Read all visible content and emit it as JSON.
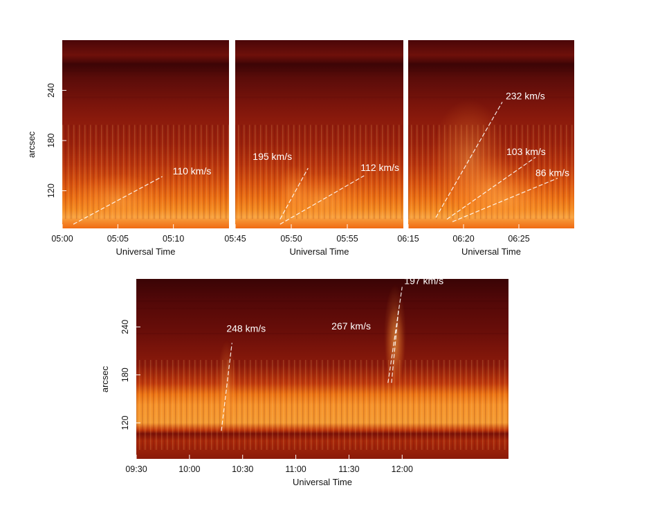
{
  "chart_data": [
    {
      "type": "heatmap",
      "panel": "top-left",
      "xlabel": "Universal Time",
      "ylabel": "arcsec",
      "x_ticks": [
        "05:00",
        "05:05",
        "05:10"
      ],
      "y_ticks": [
        "120",
        "180",
        "240"
      ],
      "xlim": [
        "05:00",
        "05:15"
      ],
      "ylim": [
        75,
        300
      ],
      "colormap": "red-orange-white (hot)",
      "annotations": [
        {
          "label": "110 km/s",
          "line": [
            [
              "05:01",
              80
            ],
            [
              "05:09",
              137
            ]
          ]
        }
      ]
    },
    {
      "type": "heatmap",
      "panel": "top-middle",
      "xlabel": "Universal Time",
      "ylabel": "",
      "x_ticks": [
        "05:45",
        "05:50",
        "05:55"
      ],
      "xlim": [
        "05:45",
        "06:00"
      ],
      "ylim": [
        75,
        300
      ],
      "colormap": "red-orange-white (hot)",
      "annotations": [
        {
          "label": "195 km/s",
          "line": [
            [
              "05:49",
              86
            ],
            [
              "05:51.5",
              147
            ]
          ]
        },
        {
          "label": "112 km/s",
          "line": [
            [
              "05:49",
              80
            ],
            [
              "05:56.5",
              138
            ]
          ]
        }
      ]
    },
    {
      "type": "heatmap",
      "panel": "top-right",
      "xlabel": "Universal Time",
      "ylabel": "",
      "x_ticks": [
        "06:15",
        "06:20",
        "06:25"
      ],
      "xlim": [
        "06:15",
        "06:30"
      ],
      "ylim": [
        75,
        300
      ],
      "colormap": "red-orange-white (hot)",
      "annotations": [
        {
          "label": "232 km/s",
          "line": [
            [
              "06:17.5",
              88
            ],
            [
              "06:23.5",
              226
            ]
          ]
        },
        {
          "label": "103 km/s",
          "line": [
            [
              "06:18.5",
              86
            ],
            [
              "06:26.5",
              160
            ]
          ]
        },
        {
          "label": "86 km/s",
          "line": [
            [
              "06:19",
              83
            ],
            [
              "06:28.5",
              135
            ]
          ]
        }
      ]
    },
    {
      "type": "heatmap",
      "panel": "bottom",
      "xlabel": "Universal Time",
      "ylabel": "arcsec",
      "x_ticks": [
        "09:30",
        "10:00",
        "10:30",
        "11:00",
        "11:30",
        "12:00"
      ],
      "y_ticks": [
        "120",
        "180",
        "240"
      ],
      "xlim": [
        "09:30",
        "13:00"
      ],
      "ylim": [
        75,
        300
      ],
      "colormap": "red-orange-white (hot)",
      "annotations": [
        {
          "label": "248 km/s",
          "line": [
            [
              "10:18",
              110
            ],
            [
              "10:24",
              220
            ]
          ]
        },
        {
          "label": "267 km/s",
          "line": [
            [
              "11:54",
              170
            ],
            [
              "11:58",
              263
            ]
          ]
        },
        {
          "label": "197 km/s",
          "line": [
            [
              "11:52",
              170
            ],
            [
              "12:00",
              290
            ]
          ]
        }
      ]
    }
  ]
}
